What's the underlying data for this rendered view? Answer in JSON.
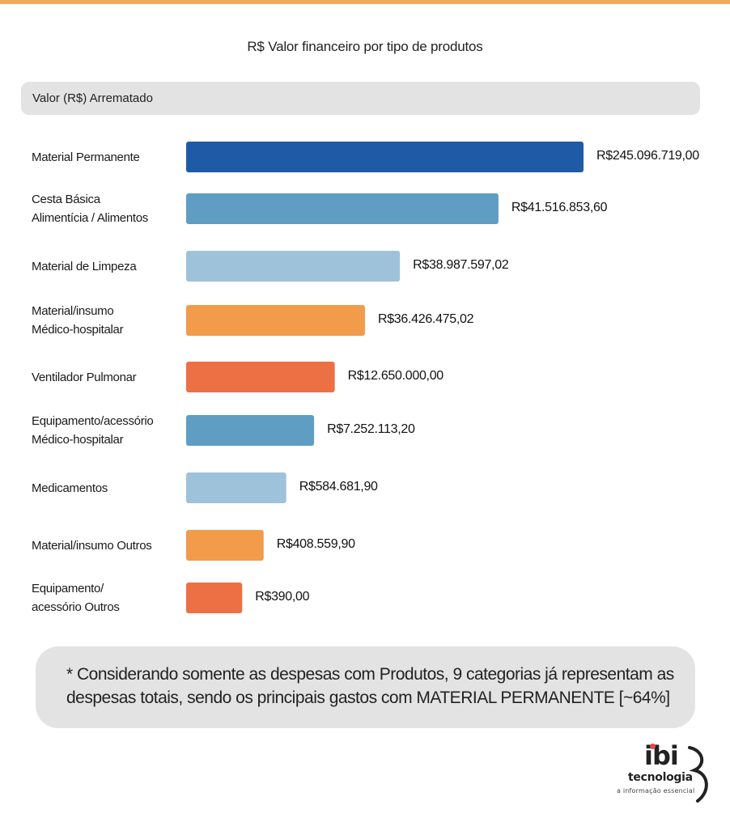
{
  "chart_data": {
    "type": "bar",
    "orientation": "horizontal",
    "title": "R$ Valor financeiro por tipo de produtos",
    "series_header": "Valor (R$) Arrematado",
    "categories": [
      "Material Permanente",
      "Cesta Básica\nAlimentícia / Alimentos",
      "Material de Limpeza",
      "Material/insumo\nMédico-hospitalar",
      "Ventilador Pulmonar",
      "Equipamento/acessório\nMédico-hospitalar",
      "Medicamentos",
      "Material/insumo Outros",
      "Equipamento/\nacessório Outros"
    ],
    "values": [
      245096719.0,
      41516853.6,
      38987597.02,
      36426475.02,
      12650000.0,
      7252113.2,
      584681.9,
      408559.9,
      390.0
    ],
    "value_labels": [
      "R$245.096.719,00",
      "R$41.516.853,60",
      "R$38.987.597,02",
      "R$36.426.475,02",
      "R$12.650.000,00",
      "R$7.252.113,20",
      "R$584.681,90",
      "R$408.559,90",
      "R$390,00"
    ],
    "bar_colors": [
      "#1f5aa6",
      "#5f9dc3",
      "#9fc2db",
      "#f29b4a",
      "#ec7044",
      "#5f9dc3",
      "#9fc2db",
      "#f29b4a",
      "#ec7044"
    ],
    "bar_fraction_of_first": [
      1.0,
      0.786,
      0.538,
      0.45,
      0.374,
      0.322,
      0.252,
      0.195,
      0.141
    ]
  },
  "note": {
    "text": "* Considerando somente as despesas com Produtos, 9 categorias já representam as despesas totais, sendo os principais gastos com MATERIAL PERMANENTE [~64%]"
  },
  "logo": {
    "word": "ibi",
    "line1": "tecnologia",
    "line2": "a informação essencial"
  },
  "colors": {
    "accent_stripe": "#f4a95a",
    "panel_gray": "#e3e3e4"
  }
}
